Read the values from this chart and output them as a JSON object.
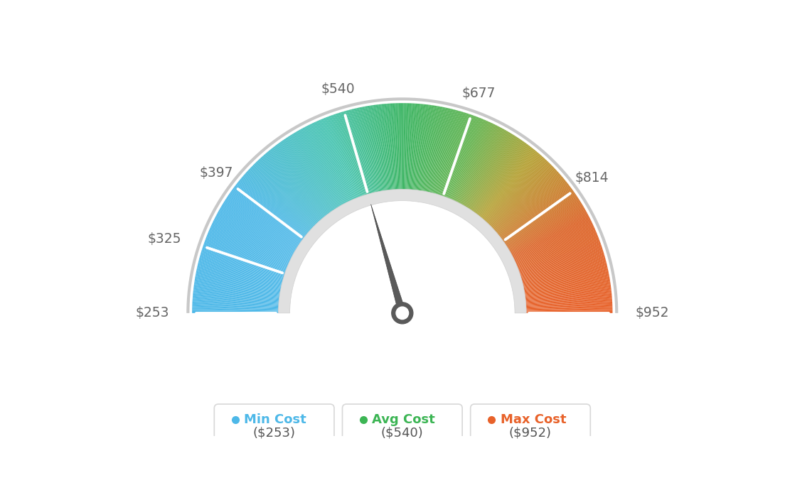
{
  "min_val": 253,
  "max_val": 952,
  "avg_val": 540,
  "tick_labels": [
    "$253",
    "$325",
    "$397",
    "$540",
    "$677",
    "$814",
    "$952"
  ],
  "tick_values": [
    253,
    325,
    397,
    540,
    677,
    814,
    952
  ],
  "color_stops": [
    [
      0.0,
      [
        77,
        184,
        232
      ]
    ],
    [
      0.2,
      [
        77,
        184,
        232
      ]
    ],
    [
      0.38,
      [
        72,
        196,
        176
      ]
    ],
    [
      0.5,
      [
        60,
        181,
        100
      ]
    ],
    [
      0.62,
      [
        100,
        180,
        80
      ]
    ],
    [
      0.72,
      [
        180,
        160,
        50
      ]
    ],
    [
      0.85,
      [
        220,
        100,
        40
      ]
    ],
    [
      1.0,
      [
        232,
        98,
        42
      ]
    ]
  ],
  "legend": [
    {
      "label": "Min Cost",
      "value": "($253)",
      "color": "#4db8e8"
    },
    {
      "label": "Avg Cost",
      "value": "($540)",
      "color": "#3cb554"
    },
    {
      "label": "Max Cost",
      "value": "($952)",
      "color": "#e8622a"
    }
  ],
  "bg_color": "#ffffff"
}
